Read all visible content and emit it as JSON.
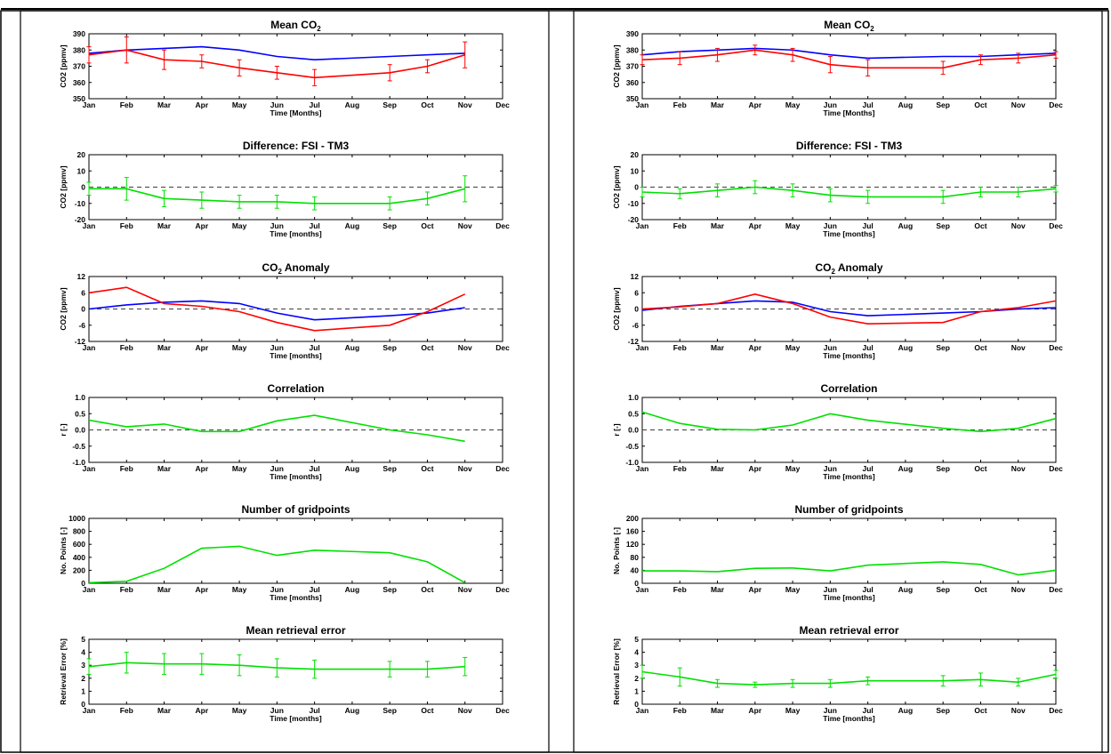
{
  "colors": {
    "fsi": "#ff0000",
    "tm3": "#0000ff",
    "single": "#00e000",
    "zero": "#555555"
  },
  "chart_data": [
    {
      "panel": "left",
      "type": "line",
      "title": "Mean CO",
      "title_sub": "2",
      "xlabel": "Time [Months]",
      "ylabel": "CO2 [ppmv]",
      "categories": [
        "Jan",
        "Feb",
        "Mar",
        "Apr",
        "May",
        "Jun",
        "Jul",
        "Aug",
        "Sep",
        "Oct",
        "Nov",
        "Dec"
      ],
      "ylim": [
        350,
        390
      ],
      "yticks": [
        350,
        360,
        370,
        380,
        390
      ],
      "ytick_labels": [
        "350",
        "360",
        "370",
        "380",
        "390"
      ],
      "series": [
        {
          "color": "#0000ff",
          "x": [
            0,
            1,
            2,
            3,
            4,
            5,
            6,
            8,
            10
          ],
          "y": [
            378,
            380,
            381,
            382,
            380,
            376,
            374,
            376,
            378
          ]
        },
        {
          "color": "#ff0000",
          "x": [
            0,
            1,
            2,
            3,
            4,
            5,
            6,
            8,
            9,
            10
          ],
          "y": [
            377,
            380,
            374,
            373,
            369,
            366,
            363,
            366,
            370,
            377
          ],
          "err": [
            5,
            8,
            6,
            4,
            5,
            4,
            5,
            5,
            4,
            8
          ]
        }
      ]
    },
    {
      "panel": "left",
      "type": "line",
      "title": "Difference: FSI - TM3",
      "xlabel": "Time [months]",
      "ylabel": "CO2 [ppmv]",
      "categories": [
        "Jan",
        "Feb",
        "Mar",
        "Apr",
        "May",
        "Jun",
        "Jul",
        "Aug",
        "Sep",
        "Oct",
        "Nov",
        "Dec"
      ],
      "ylim": [
        -20,
        20
      ],
      "yticks": [
        -20,
        -10,
        0,
        10,
        20
      ],
      "ytick_labels": [
        "-20",
        "-10",
        "0",
        "10",
        "20"
      ],
      "zero_line": 0,
      "series": [
        {
          "color": "#00e000",
          "x": [
            0,
            1,
            2,
            3,
            4,
            5,
            6,
            8,
            9,
            10
          ],
          "y": [
            -1,
            -1,
            -7,
            -8,
            -9,
            -9,
            -10,
            -10,
            -7,
            -1
          ],
          "err": [
            4,
            7,
            5,
            5,
            4,
            4,
            4,
            4,
            4,
            8
          ]
        }
      ]
    },
    {
      "panel": "left",
      "type": "line",
      "title": "CO",
      "title_sub": "2",
      "title_rest": " Anomaly",
      "xlabel": "Time [months]",
      "ylabel": "CO2 [ppmv]",
      "categories": [
        "Jan",
        "Feb",
        "Mar",
        "Apr",
        "May",
        "Jun",
        "Jul",
        "Aug",
        "Sep",
        "Oct",
        "Nov",
        "Dec"
      ],
      "ylim": [
        -12,
        12
      ],
      "yticks": [
        -12,
        -6,
        0,
        6,
        12
      ],
      "ytick_labels": [
        "-12",
        "-6",
        "0",
        "6",
        "12"
      ],
      "zero_line": 0,
      "series": [
        {
          "color": "#0000ff",
          "x": [
            0,
            1,
            2,
            3,
            4,
            5,
            6,
            8,
            9,
            10
          ],
          "y": [
            0,
            1.5,
            2.5,
            3,
            2,
            -1.5,
            -4,
            -2.5,
            -1.5,
            0.5
          ]
        },
        {
          "color": "#ff0000",
          "x": [
            0,
            1,
            2,
            3,
            4,
            5,
            6,
            8,
            9,
            10
          ],
          "y": [
            6,
            8,
            2,
            1,
            -1,
            -5,
            -8,
            -6,
            -1,
            5.5
          ]
        }
      ]
    },
    {
      "panel": "left",
      "type": "line",
      "title": "Correlation",
      "xlabel": "Time [months]",
      "ylabel": "r [-]",
      "categories": [
        "Jan",
        "Feb",
        "Mar",
        "Apr",
        "May",
        "Jun",
        "Jul",
        "Aug",
        "Sep",
        "Oct",
        "Nov",
        "Dec"
      ],
      "ylim": [
        -1,
        1
      ],
      "yticks": [
        -1,
        -0.5,
        0,
        0.5,
        1
      ],
      "ytick_labels": [
        "-1.0",
        "-0.5",
        "0.0",
        "0.5",
        "1.0"
      ],
      "zero_line": 0,
      "series": [
        {
          "color": "#00e000",
          "x": [
            0,
            1,
            2,
            3,
            4,
            5,
            6,
            8,
            9,
            10
          ],
          "y": [
            0.3,
            0.1,
            0.18,
            -0.05,
            -0.05,
            0.28,
            0.45,
            0.0,
            -0.15,
            -0.35
          ]
        }
      ]
    },
    {
      "panel": "left",
      "type": "line",
      "title": "Number of gridpoints",
      "xlabel": "Time [months]",
      "ylabel": "No. Points [-]",
      "categories": [
        "Jan",
        "Feb",
        "Mar",
        "Apr",
        "May",
        "Jun",
        "Jul",
        "Aug",
        "Sep",
        "Oct",
        "Nov",
        "Dec"
      ],
      "ylim": [
        0,
        1000
      ],
      "yticks": [
        0,
        200,
        400,
        600,
        800,
        1000
      ],
      "ytick_labels": [
        "0",
        "200",
        "400",
        "600",
        "800",
        "1000"
      ],
      "series": [
        {
          "color": "#00e000",
          "x": [
            0,
            1,
            2,
            3,
            4,
            5,
            6,
            8,
            9,
            10
          ],
          "y": [
            10,
            30,
            230,
            540,
            570,
            430,
            510,
            470,
            330,
            10
          ]
        }
      ]
    },
    {
      "panel": "left",
      "type": "line",
      "title": "Mean retrieval error",
      "xlabel": "Time [months]",
      "ylabel": "Retrieval Error [%]",
      "categories": [
        "Jan",
        "Feb",
        "Mar",
        "Apr",
        "May",
        "Jun",
        "Jul",
        "Aug",
        "Sep",
        "Oct",
        "Nov",
        "Dec"
      ],
      "ylim": [
        0,
        5
      ],
      "yticks": [
        0,
        1,
        2,
        3,
        4,
        5
      ],
      "ytick_labels": [
        "0",
        "1",
        "2",
        "3",
        "4",
        "5"
      ],
      "series": [
        {
          "color": "#00e000",
          "x": [
            0,
            1,
            2,
            3,
            4,
            5,
            6,
            8,
            9,
            10
          ],
          "y": [
            2.9,
            3.2,
            3.1,
            3.1,
            3.0,
            2.8,
            2.7,
            2.7,
            2.7,
            2.9
          ],
          "err": [
            0.6,
            0.8,
            0.8,
            0.8,
            0.8,
            0.7,
            0.7,
            0.6,
            0.6,
            0.7
          ]
        }
      ]
    },
    {
      "panel": "right",
      "type": "line",
      "title": "Mean CO",
      "title_sub": "2",
      "xlabel": "Time [Months]",
      "ylabel": "CO2 [ppmv]",
      "categories": [
        "Jan",
        "Feb",
        "Mar",
        "Apr",
        "May",
        "Jun",
        "Jul",
        "Aug",
        "Sep",
        "Oct",
        "Nov",
        "Dec"
      ],
      "ylim": [
        350,
        390
      ],
      "yticks": [
        350,
        360,
        370,
        380,
        390
      ],
      "ytick_labels": [
        "350",
        "360",
        "370",
        "380",
        "390"
      ],
      "series": [
        {
          "color": "#0000ff",
          "x": [
            0,
            1,
            2,
            3,
            4,
            5,
            6,
            8,
            9,
            10,
            11
          ],
          "y": [
            377,
            379,
            380,
            381,
            380,
            377,
            375,
            376,
            376,
            377,
            378
          ]
        },
        {
          "color": "#ff0000",
          "x": [
            0,
            1,
            2,
            3,
            4,
            5,
            6,
            8,
            9,
            10,
            11
          ],
          "y": [
            374,
            375,
            377,
            380,
            377,
            371,
            369,
            369,
            374,
            375,
            377
          ],
          "err": [
            3,
            4,
            4,
            3,
            4,
            5,
            5,
            4,
            3,
            3,
            2
          ]
        }
      ]
    },
    {
      "panel": "right",
      "type": "line",
      "title": "Difference: FSI - TM3",
      "xlabel": "Time [months]",
      "ylabel": "CO2 [ppmv]",
      "categories": [
        "Jan",
        "Feb",
        "Mar",
        "Apr",
        "May",
        "Jun",
        "Jul",
        "Aug",
        "Sep",
        "Oct",
        "Nov",
        "Dec"
      ],
      "ylim": [
        -20,
        20
      ],
      "yticks": [
        -20,
        -10,
        0,
        10,
        20
      ],
      "ytick_labels": [
        "-20",
        "-10",
        "0",
        "10",
        "20"
      ],
      "zero_line": 0,
      "series": [
        {
          "color": "#00e000",
          "x": [
            0,
            1,
            2,
            3,
            4,
            5,
            6,
            8,
            9,
            10,
            11
          ],
          "y": [
            -3,
            -4,
            -2,
            0,
            -2,
            -5,
            -6,
            -6,
            -3,
            -3,
            -1
          ],
          "err": [
            3,
            3,
            4,
            4,
            4,
            4,
            4,
            4,
            3,
            3,
            2
          ]
        }
      ]
    },
    {
      "panel": "right",
      "type": "line",
      "title": "CO",
      "title_sub": "2",
      "title_rest": " Anomaly",
      "xlabel": "Time [months]",
      "ylabel": "CO2 [ppmv]",
      "categories": [
        "Jan",
        "Feb",
        "Mar",
        "Apr",
        "May",
        "Jun",
        "Jul",
        "Aug",
        "Sep",
        "Oct",
        "Nov",
        "Dec"
      ],
      "ylim": [
        -12,
        12
      ],
      "yticks": [
        -12,
        -6,
        0,
        6,
        12
      ],
      "ytick_labels": [
        "-12",
        "-6",
        "0",
        "6",
        "12"
      ],
      "zero_line": 0,
      "series": [
        {
          "color": "#0000ff",
          "x": [
            0,
            1,
            2,
            3,
            4,
            5,
            6,
            8,
            9,
            10,
            11
          ],
          "y": [
            -0.5,
            1,
            2,
            3,
            2.5,
            -1,
            -2.5,
            -1.5,
            -1,
            0,
            0.5
          ]
        },
        {
          "color": "#ff0000",
          "x": [
            0,
            1,
            2,
            3,
            4,
            5,
            6,
            8,
            9,
            10,
            11
          ],
          "y": [
            0,
            0.8,
            2,
            5.5,
            2,
            -3,
            -5.5,
            -5,
            -1,
            0.5,
            3
          ]
        }
      ]
    },
    {
      "panel": "right",
      "type": "line",
      "title": "Correlation",
      "xlabel": "Time [months]",
      "ylabel": "r [-]",
      "categories": [
        "Jan",
        "Feb",
        "Mar",
        "Apr",
        "May",
        "Jun",
        "Jul",
        "Aug",
        "Sep",
        "Oct",
        "Nov",
        "Dec"
      ],
      "ylim": [
        -1,
        1
      ],
      "yticks": [
        -1,
        -0.5,
        0,
        0.5,
        1
      ],
      "ytick_labels": [
        "-1.0",
        "-0.5",
        "0.0",
        "0.5",
        "1.0"
      ],
      "zero_line": 0,
      "series": [
        {
          "color": "#00e000",
          "x": [
            0,
            1,
            2,
            3,
            4,
            5,
            6,
            8,
            9,
            10,
            11
          ],
          "y": [
            0.55,
            0.2,
            0.02,
            0.0,
            0.15,
            0.5,
            0.3,
            0.05,
            -0.05,
            0.05,
            0.35
          ]
        }
      ]
    },
    {
      "panel": "right",
      "type": "line",
      "title": "Number of gridpoints",
      "xlabel": "Time [months]",
      "ylabel": "No. Points [-]",
      "categories": [
        "Jan",
        "Feb",
        "Mar",
        "Apr",
        "May",
        "Jun",
        "Jul",
        "Aug",
        "Sep",
        "Oct",
        "Nov",
        "Dec"
      ],
      "ylim": [
        0,
        200
      ],
      "yticks": [
        0,
        40,
        80,
        120,
        160,
        200
      ],
      "ytick_labels": [
        "0",
        "40",
        "80",
        "120",
        "160",
        "200"
      ],
      "series": [
        {
          "color": "#00e000",
          "x": [
            0,
            1,
            2,
            3,
            4,
            5,
            6,
            8,
            9,
            10,
            11
          ],
          "y": [
            38,
            38,
            36,
            46,
            47,
            38,
            56,
            66,
            58,
            26,
            40
          ]
        }
      ]
    },
    {
      "panel": "right",
      "type": "line",
      "title": "Mean retrieval error",
      "xlabel": "Time [months]",
      "ylabel": "Retrieval Error [%]",
      "categories": [
        "Jan",
        "Feb",
        "Mar",
        "Apr",
        "May",
        "Jun",
        "Jul",
        "Aug",
        "Sep",
        "Oct",
        "Nov",
        "Dec"
      ],
      "ylim": [
        0,
        5
      ],
      "yticks": [
        0,
        1,
        2,
        3,
        4,
        5
      ],
      "ytick_labels": [
        "0",
        "1",
        "2",
        "3",
        "4",
        "5"
      ],
      "series": [
        {
          "color": "#00e000",
          "x": [
            0,
            1,
            2,
            3,
            4,
            5,
            6,
            8,
            9,
            10,
            11
          ],
          "y": [
            2.5,
            2.1,
            1.6,
            1.5,
            1.6,
            1.6,
            1.8,
            1.8,
            1.9,
            1.7,
            2.3
          ],
          "err": [
            0.5,
            0.7,
            0.3,
            0.2,
            0.3,
            0.3,
            0.3,
            0.4,
            0.5,
            0.3,
            0.3
          ]
        }
      ]
    }
  ]
}
